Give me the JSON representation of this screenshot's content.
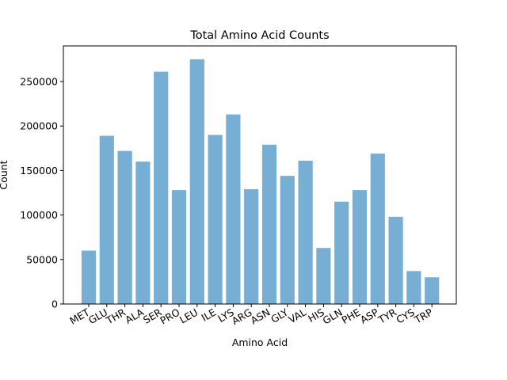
{
  "chart_data": {
    "type": "bar",
    "title": "Total Amino Acid Counts",
    "xlabel": "Amino Acid",
    "ylabel": "Count",
    "categories": [
      "MET",
      "GLU",
      "THR",
      "ALA",
      "SER",
      "PRO",
      "LEU",
      "ILE",
      "LYS",
      "ARG",
      "ASN",
      "GLY",
      "VAL",
      "HIS",
      "GLN",
      "PHE",
      "ASP",
      "TYR",
      "CYS",
      "TRP"
    ],
    "values": [
      60000,
      189000,
      172000,
      160000,
      261000,
      128000,
      275000,
      190000,
      213000,
      129000,
      179000,
      144000,
      161000,
      63000,
      115000,
      128000,
      169000,
      98000,
      37000,
      30000
    ],
    "ylim": [
      0,
      290000
    ],
    "yticks": [
      0,
      50000,
      100000,
      150000,
      200000,
      250000
    ],
    "ytick_labels": [
      "0",
      "50000",
      "100000",
      "150000",
      "200000",
      "250000"
    ],
    "grid": false,
    "bar_color": "#77afd4"
  }
}
